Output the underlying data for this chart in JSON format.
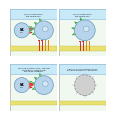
{
  "bg_color": "#ffffff",
  "panel_bg": "#f0f8f0",
  "title_bg": "#c8eaf8",
  "title_border": "#88bbdd",
  "cell_color": "#b8d4ec",
  "cell_edge": "#6699bb",
  "nk_color": "#b8d4ec",
  "nk_edge": "#6699bb",
  "floor_color": "#e8e070",
  "floor_edge": "#c8c050",
  "panel_border": "#999999",
  "panels": [
    {
      "id": 0,
      "title": "NK cell does not kill\nthe normal cell",
      "nk": true,
      "cell": true,
      "mhc": true,
      "ligands_cell": true,
      "ligands_nk": true,
      "kill": false,
      "dead": false,
      "has_signal": true
    },
    {
      "id": 1,
      "title": "NK cell does not kill\nthe normal cell",
      "nk": false,
      "cell": true,
      "mhc": true,
      "ligands_cell": true,
      "ligands_nk": false,
      "kill": false,
      "dead": false,
      "has_signal": false
    },
    {
      "id": 2,
      "title": "Absence of class I MHC / removal\nof inhibitory signals from\nactivating receptors",
      "nk": true,
      "cell": true,
      "mhc": false,
      "ligands_cell": true,
      "ligands_nk": true,
      "kill": true,
      "dead": false,
      "has_signal": false
    },
    {
      "id": 3,
      "title": "Infected cell expresses proteins\nallowing activation of target cell",
      "nk": false,
      "cell": true,
      "mhc": false,
      "ligands_cell": false,
      "ligands_nk": false,
      "kill": false,
      "dead": true,
      "has_signal": false
    }
  ],
  "mhc_bar_colors": [
    "#cc3333",
    "#cc3333",
    "#dd8822",
    "#dd8822"
  ],
  "ligand_color": "#44aa44",
  "receptor_colors": [
    "#cc3333",
    "#44aa44",
    "#cc3333",
    "#44aa44"
  ],
  "kill_arrow_color": "#ff3333",
  "inhibit_color": "#888888"
}
